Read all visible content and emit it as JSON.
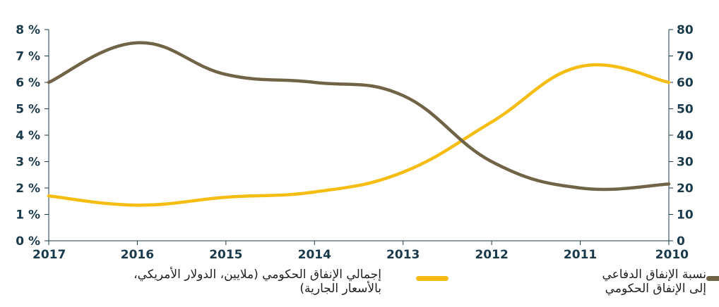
{
  "chart_data": {
    "type": "line",
    "x": [
      "2017",
      "2016",
      "2015",
      "2014",
      "2013",
      "2012",
      "2011",
      "2010"
    ],
    "series": [
      {
        "name": "نسبة الإنفاق الدفاعي\nإلى الإنفاق الحكومي",
        "axis": "left",
        "color": "#706446",
        "values": [
          6.0,
          7.5,
          6.3,
          6.0,
          5.5,
          3.0,
          2.0,
          2.15
        ]
      },
      {
        "name": "إجمالي الإنفاق الحكومي (ملايين، الدولار الأمريكي،\nبالأسعار الجارية)",
        "axis": "right",
        "color": "#f5bd12",
        "values": [
          17,
          13.5,
          16.5,
          18.5,
          26,
          45,
          66,
          60
        ]
      }
    ],
    "y_left": {
      "ticks": [
        "0 %",
        "1 %",
        "2 %",
        "3 %",
        "4 %",
        "5 %",
        "6 %",
        "7 %",
        "8 %"
      ],
      "min": 0,
      "max": 8
    },
    "y_right": {
      "ticks": [
        "0",
        "10",
        "20",
        "30",
        "40",
        "50",
        "60",
        "70",
        "80"
      ],
      "min": 0,
      "max": 80
    },
    "grid": false,
    "legend_position": "bottom"
  }
}
